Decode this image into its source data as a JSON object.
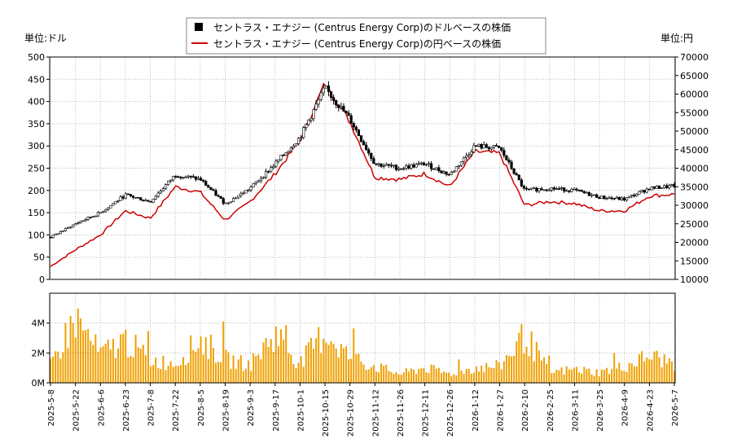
{
  "chart_data": [
    {
      "type": "candlestick+line",
      "legend": {
        "placement": "top-center",
        "entries": [
          "セントラス・エナジー (Centrus Energy Corp)のドルベースの株価",
          "セントラス・エナジー (Centrus Energy Corp)の円ベースの株価"
        ]
      },
      "left_unit_label": "単位:ドル",
      "right_unit_label": "単位:円",
      "left_axis": {
        "min": 0,
        "max": 500,
        "ticks": [
          0,
          50,
          100,
          150,
          200,
          250,
          300,
          350,
          400,
          450,
          500
        ]
      },
      "right_axis": {
        "min": 10000,
        "max": 70000,
        "ticks": [
          10000,
          15000,
          20000,
          25000,
          30000,
          35000,
          40000,
          45000,
          50000,
          55000,
          60000,
          65000,
          70000
        ]
      },
      "grid": true,
      "colors": {
        "usd": "#000000",
        "jpy": "#cc0000",
        "grid": "#bbbbbb",
        "volume": "#f0a000"
      },
      "x_labels": [
        "2025-5-8",
        "2025-5-22",
        "2025-6-6",
        "2025-6-23",
        "2025-7-8",
        "2025-7-22",
        "2025-8-5",
        "2025-8-19",
        "2025-9-3",
        "2025-9-17",
        "2025-10-1",
        "2025-10-15",
        "2025-10-29",
        "2025-11-12",
        "2025-11-26",
        "2025-12-11",
        "2025-12-26",
        "2026-1-12",
        "2026-1-27",
        "2026-2-10",
        "2026-2-25",
        "2026-3-11",
        "2026-3-25",
        "2026-4-9",
        "2026-4-23",
        "2026-5-7"
      ],
      "usd_close_by_label": [
        95,
        125,
        150,
        190,
        175,
        235,
        225,
        170,
        205,
        260,
        320,
        430,
        360,
        260,
        250,
        260,
        235,
        300,
        295,
        200,
        205,
        200,
        185,
        180,
        205,
        210
      ],
      "jpy_close_by_label": [
        13500,
        18000,
        22000,
        28500,
        26500,
        35000,
        33500,
        26000,
        31000,
        38500,
        47500,
        63000,
        52500,
        37500,
        37000,
        38500,
        35000,
        44500,
        44000,
        30000,
        31000,
        30500,
        28500,
        28500,
        32500,
        33000
      ]
    },
    {
      "type": "bar",
      "y_axis": {
        "min": 0,
        "max": 6000000,
        "ticks": [
          "0M",
          "2M",
          "4M"
        ]
      },
      "volume_by_label": [
        1200000,
        4300000,
        1900000,
        2900000,
        1500000,
        1300000,
        2900000,
        1600000,
        1200000,
        3300000,
        1300000,
        3400000,
        1700000,
        1100000,
        600000,
        1000000,
        600000,
        1000000,
        1100000,
        3200000,
        700000,
        900000,
        700000,
        1100000,
        1800000,
        1300000
      ]
    }
  ]
}
